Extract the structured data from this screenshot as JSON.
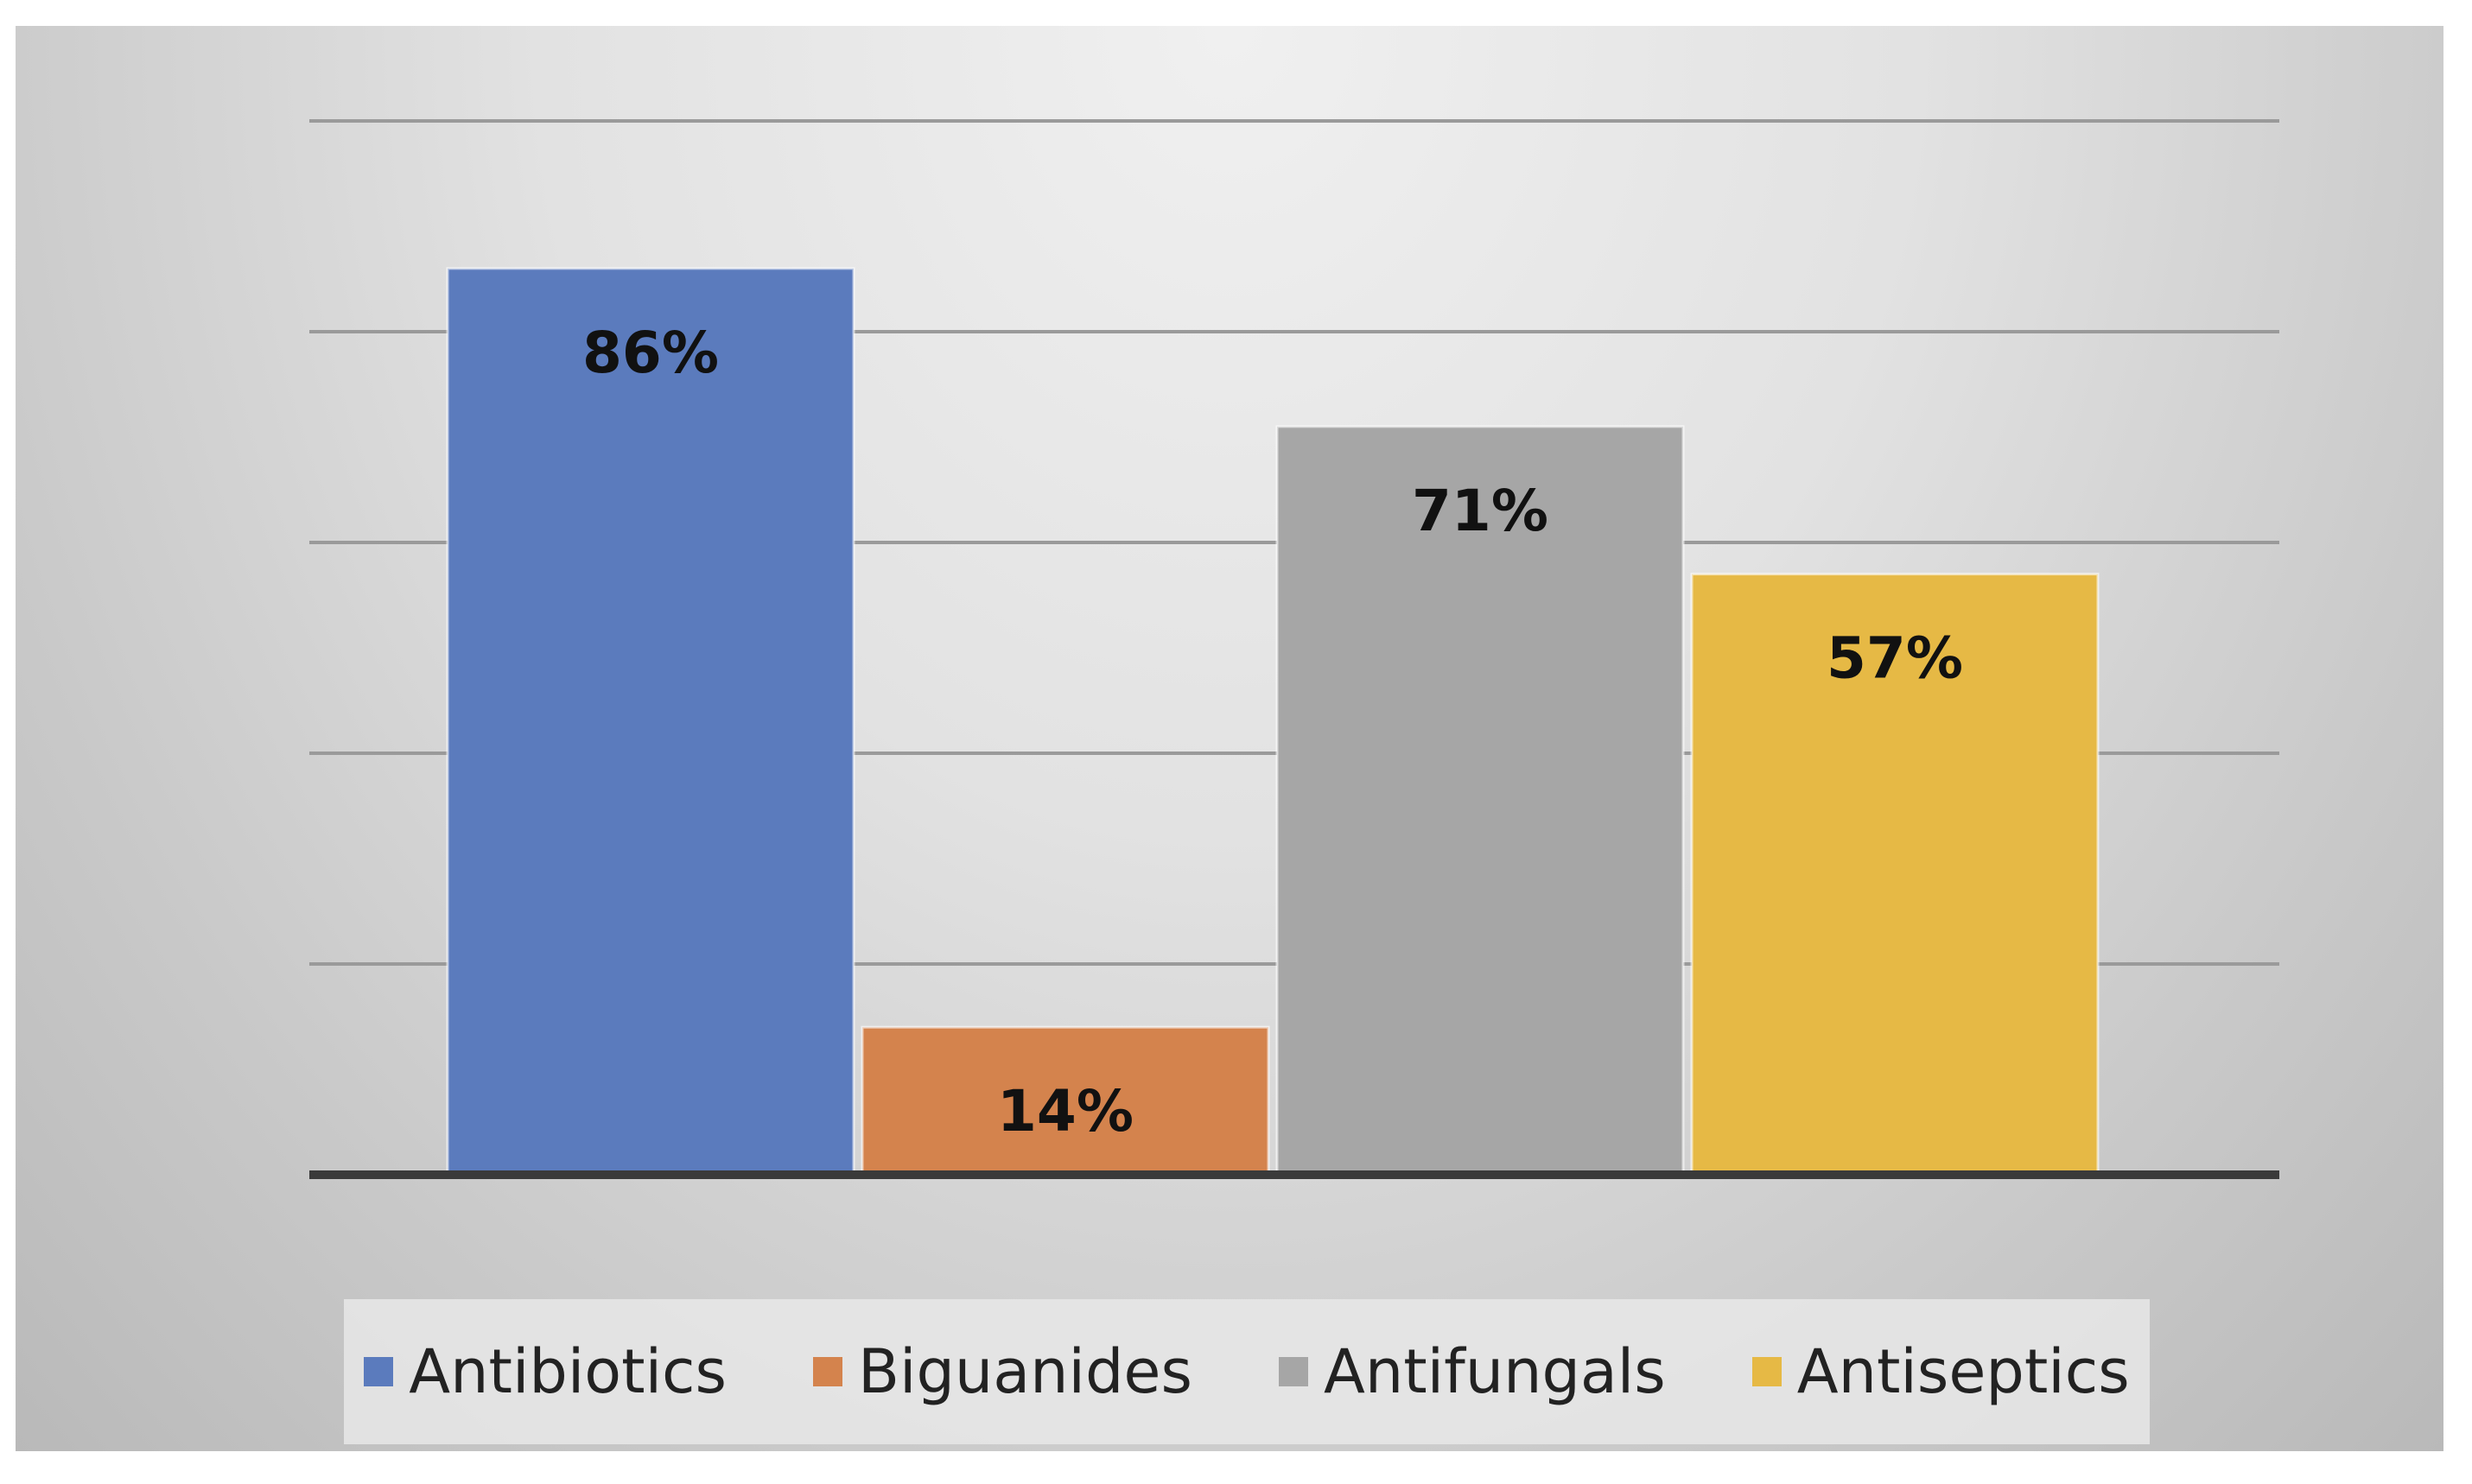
{
  "chart_data": {
    "type": "bar",
    "categories": [
      "Antibiotics",
      "Biguanides",
      "Antifungals",
      "Antiseptics"
    ],
    "values": [
      86,
      14,
      71,
      57
    ],
    "value_labels": [
      "86%",
      "14%",
      "71%",
      "57%"
    ],
    "colors": [
      "#5b7bbd",
      "#d4834d",
      "#a6a6a6",
      "#e6b945"
    ],
    "ylim": [
      0,
      100
    ],
    "grid": true,
    "legend_position": "bottom"
  }
}
